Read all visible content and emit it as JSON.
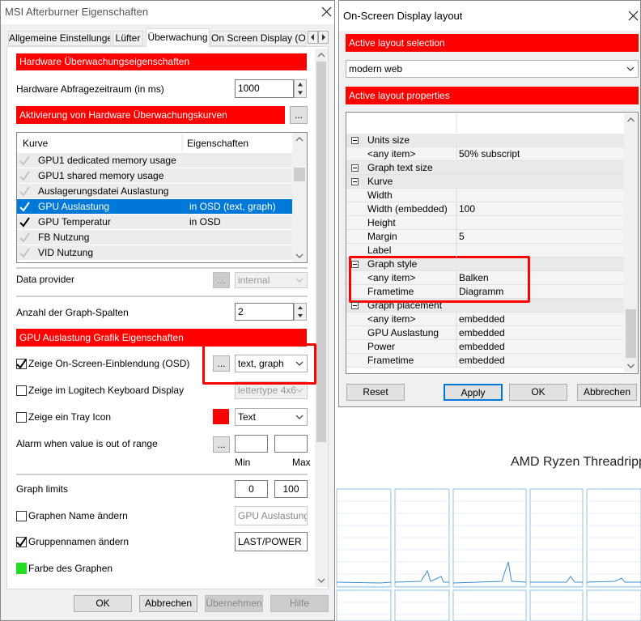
{
  "left_dialog": {
    "title": "MSI Afterburner Eigenschaften",
    "tabs": [
      "Allgemeine Einstellungen",
      "Lüfter",
      "Überwachung",
      "On Screen Display (OS"
    ],
    "active_tab": 2,
    "monitoring_header": "Hardware Überwachungseigenschaften",
    "polling": {
      "label": "Hardware Abfragezeitraum (in ms)",
      "value": "1000"
    },
    "curves_header": "Aktivierung von Hardware Überwachungskurven",
    "more_button": "...",
    "curve_list": {
      "columns": [
        "Kurve",
        "Eigenschaften"
      ],
      "rows": [
        {
          "name": "GPU1 dedicated memory usage",
          "checked": false
        },
        {
          "name": "GPU1 shared memory usage",
          "checked": false
        },
        {
          "name": "Auslagerungsdatei Auslastung",
          "checked": false
        },
        {
          "name": "GPU Auslastung",
          "properties": "in OSD (text, graph)",
          "checked": true,
          "selected": true
        },
        {
          "name": "GPU Temperatur",
          "properties": "in OSD",
          "checked": true
        },
        {
          "name": "FB Nutzung",
          "checked": false
        },
        {
          "name": "VID Nutzung",
          "checked": false
        }
      ]
    },
    "data_provider": {
      "label": "Data provider",
      "value": "internal",
      "disabled": true
    },
    "graph_columns": {
      "label": "Anzahl der Graph-Spalten",
      "value": "2"
    },
    "graph_header": "GPU Auslastung Grafik Eigenschaften",
    "osd": {
      "label": "Zeige On-Screen-Einblendung (OSD)",
      "checked": true,
      "value": "text, graph"
    },
    "logitech": {
      "label": "Zeige im Logitech Keyboard Display",
      "checked": false,
      "value": "lettertype 4x6",
      "disabled": true
    },
    "tray": {
      "label": "Zeige ein Tray Icon",
      "checked": false,
      "color": "#ff0000",
      "value": "Text"
    },
    "alarm": {
      "label": "Alarm when value is out of range",
      "min_label": "Min",
      "max_label": "Max"
    },
    "graph_limits": {
      "label": "Graph limits",
      "min": "0",
      "max": "100"
    },
    "rename_graph": {
      "label": "Graphen Name ändern",
      "checked": false,
      "value": "GPU Auslastung",
      "disabled": true
    },
    "rename_group": {
      "label": "Gruppennamen ändern",
      "checked": true,
      "value": "LAST/POWER"
    },
    "graph_color": {
      "label": "Farbe des Graphen",
      "color": "#22dd22"
    },
    "buttons": [
      {
        "label": "OK"
      },
      {
        "label": "Abbrechen"
      },
      {
        "label": "Übernehmen",
        "disabled": true
      },
      {
        "label": "Hilfe",
        "disabled": true
      }
    ]
  },
  "right_dialog": {
    "title": "On-Screen Display layout",
    "selection_header": "Active layout selection",
    "layout": "modern web",
    "properties_header": "Active layout properties",
    "properties": [
      {
        "group": "Units size"
      },
      {
        "name": "<any item>",
        "value": "50% subscript"
      },
      {
        "group": "Graph text size"
      },
      {
        "group": "Kurve"
      },
      {
        "name": "Width"
      },
      {
        "name": "Width (embedded)",
        "value": "100"
      },
      {
        "name": "Height"
      },
      {
        "name": "Margin",
        "value": "5"
      },
      {
        "name": "Label"
      },
      {
        "group": "Graph style"
      },
      {
        "name": "<any item>",
        "value": "Balken"
      },
      {
        "name": "Frametime",
        "value": "Diagramm"
      },
      {
        "group": "Graph placement"
      },
      {
        "name": "<any item>",
        "value": "embedded"
      },
      {
        "name": "GPU Auslastung",
        "value": "embedded"
      },
      {
        "name": "Power",
        "value": "embedded"
      },
      {
        "name": "Frametime",
        "value": "embedded"
      }
    ],
    "buttons": [
      {
        "label": "Reset"
      },
      {
        "label": "Apply",
        "focused": true
      },
      {
        "label": "OK"
      },
      {
        "label": "Abbrechen"
      }
    ]
  },
  "background": {
    "cpu_title": "AMD Ryzen Threadripp"
  }
}
